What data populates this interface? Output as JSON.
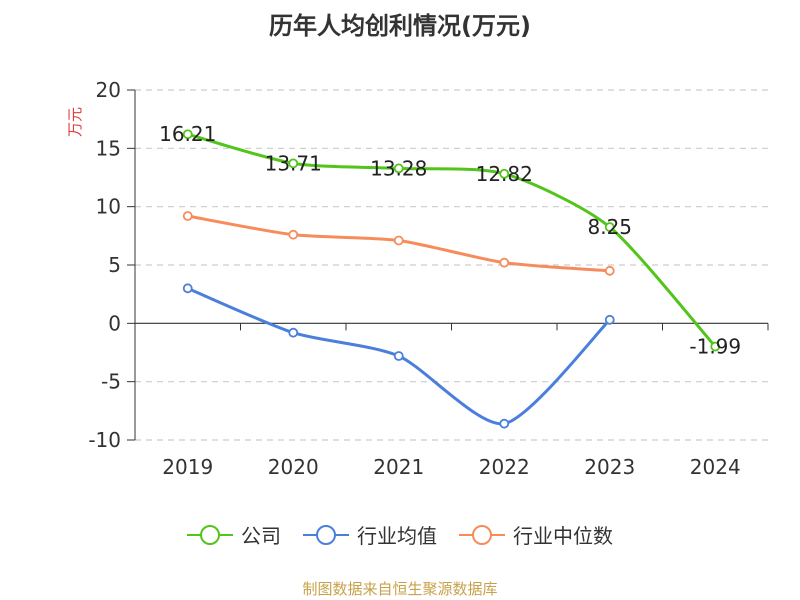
{
  "chart_data": {
    "type": "line",
    "title": "历年人均创利情况(万元)",
    "ylabel": "万元",
    "xlabel": "",
    "categories": [
      "2019",
      "2020",
      "2021",
      "2022",
      "2023",
      "2024"
    ],
    "ylim": [
      -10,
      20
    ],
    "yticks": [
      20,
      15,
      10,
      5,
      0,
      -5,
      -10
    ],
    "grid": true,
    "legend_position": "bottom",
    "series": [
      {
        "name": "公司",
        "color": "#52c41a",
        "values": [
          16.21,
          13.71,
          13.28,
          12.82,
          8.25,
          -1.99
        ],
        "labels": [
          "16.21",
          "13.71",
          "13.28",
          "12.82",
          "8.25",
          "-1.99"
        ]
      },
      {
        "name": "行业均值",
        "color": "#4a7fdb",
        "values": [
          3.0,
          -0.8,
          -2.8,
          -8.6,
          0.3,
          null
        ]
      },
      {
        "name": "行业中位数",
        "color": "#f78c5b",
        "values": [
          9.2,
          7.6,
          7.1,
          5.2,
          4.5,
          null
        ]
      }
    ]
  },
  "source_note": "制图数据来自恒生聚源数据库"
}
